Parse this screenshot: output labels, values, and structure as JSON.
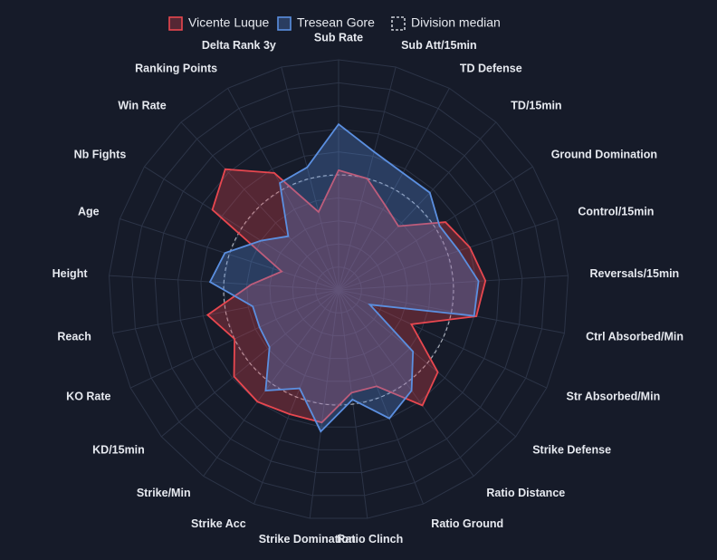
{
  "chart_data": {
    "type": "radar",
    "axes": [
      "Sub Rate",
      "Sub Att/15min",
      "TD Defense",
      "TD/15min",
      "Ground Domination",
      "Control/15min",
      "Reversals/15min",
      "Ctrl Absorbed/Min",
      "Str Absorbed/Min",
      "Strike Defense",
      "Ratio Distance",
      "Ratio Ground",
      "Ratio Clinch",
      "Strike Domination",
      "Strike Acc",
      "Strike/Min",
      "KD/15min",
      "KO Rate",
      "Reach",
      "Height",
      "Age",
      "Nb Fights",
      "Win Rate",
      "Ranking Points",
      "Delta Rank 3y"
    ],
    "range": [
      0,
      1
    ],
    "grid_levels": 10,
    "series": [
      {
        "name": "Vicente Luque",
        "color": "#e8474f",
        "values": [
          0.52,
          0.5,
          0.42,
          0.38,
          0.55,
          0.6,
          0.64,
          0.61,
          0.35,
          0.56,
          0.62,
          0.45,
          0.45,
          0.58,
          0.58,
          0.6,
          0.59,
          0.5,
          0.58,
          0.38,
          0.26,
          0.65,
          0.72,
          0.58,
          0.35
        ]
      },
      {
        "name": "Tresean Gore",
        "color": "#5b8fe0",
        "values": [
          0.72,
          0.62,
          0.58,
          0.58,
          0.52,
          0.55,
          0.61,
          0.6,
          0.15,
          0.42,
          0.54,
          0.6,
          0.48,
          0.62,
          0.46,
          0.54,
          0.39,
          0.38,
          0.38,
          0.56,
          0.52,
          0.4,
          0.32,
          0.53,
          0.55
        ]
      }
    ],
    "reference": {
      "name": "Division median",
      "value": 0.5
    },
    "legend": {
      "placement": "top"
    }
  }
}
